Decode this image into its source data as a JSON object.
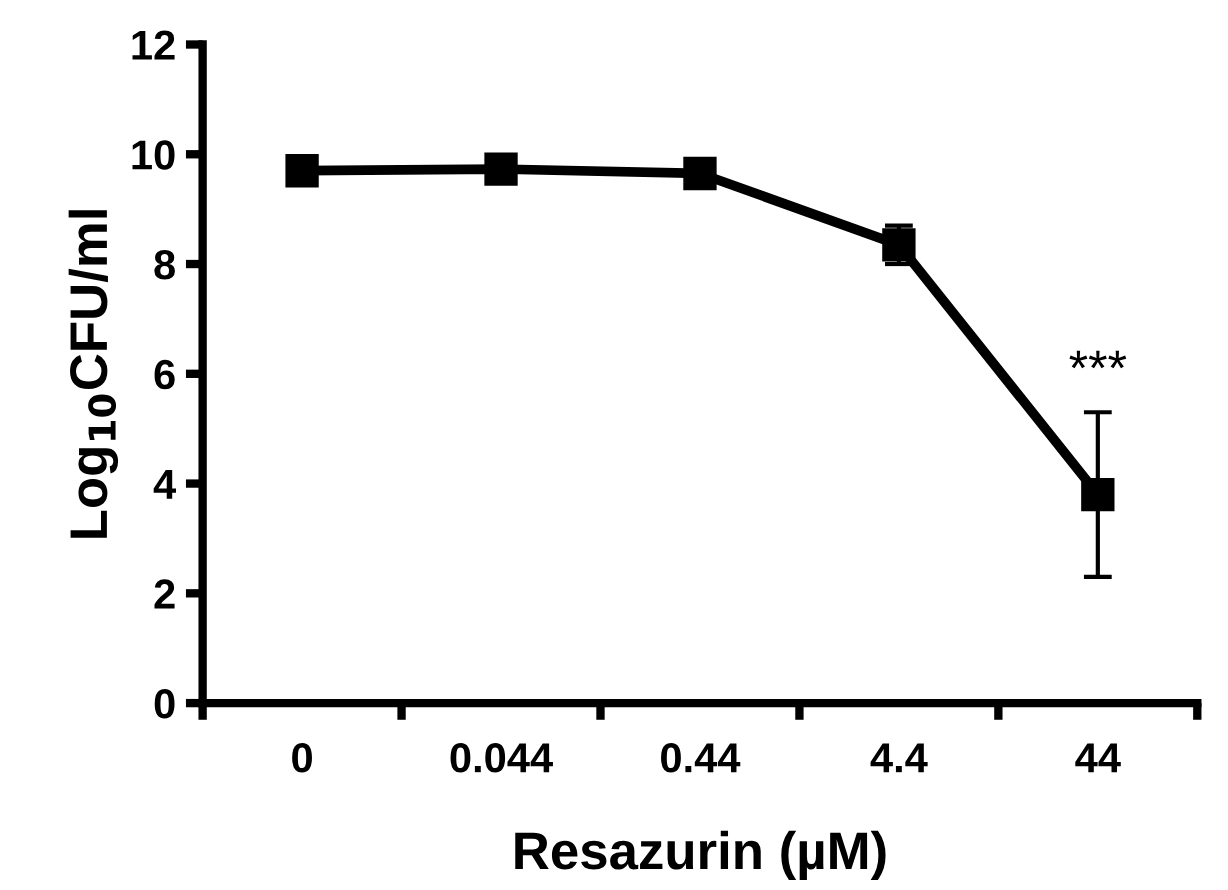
{
  "chart_data": {
    "type": "line",
    "xlabel": "Resazurin (µM)",
    "ylabel": "Log$_{10}$CFU/ml",
    "categories": [
      "0",
      "0.044",
      "0.44",
      "4.4",
      "44"
    ],
    "series": [
      {
        "color": "#000000",
        "values": [
          9.7,
          9.73,
          9.65,
          8.35,
          3.8
        ],
        "errors": [
          null,
          null,
          null,
          [
            8.0,
            8.7
          ],
          [
            2.3,
            5.3
          ]
        ]
      }
    ],
    "ylim": [
      0,
      12
    ],
    "yticks": [
      0,
      2,
      4,
      6,
      8,
      10,
      12
    ],
    "marker": "square",
    "line_style": "solid",
    "grid": false,
    "legend": false,
    "annotations": [
      "***"
    ]
  }
}
